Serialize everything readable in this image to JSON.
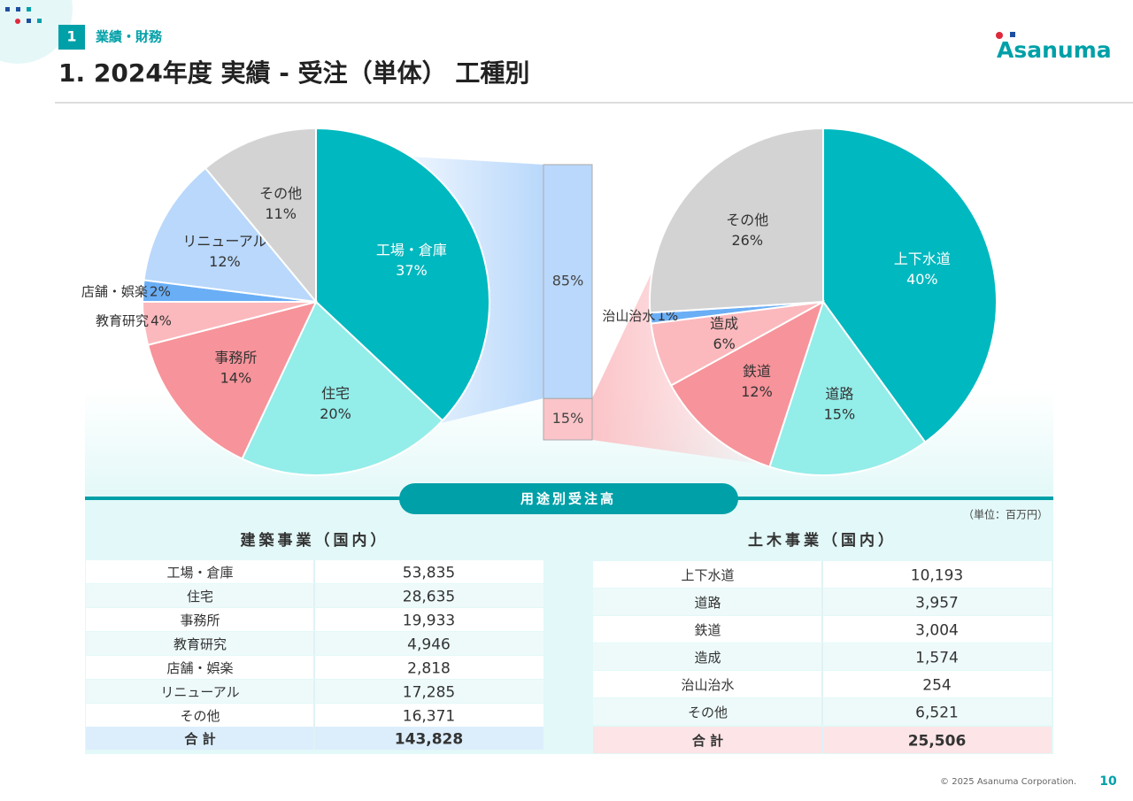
{
  "header": {
    "section_number": "1",
    "section": "業績・財務",
    "title": "1. 2024年度 実績 - 受注（単体） 工種別",
    "logo": "Asanuma"
  },
  "chart_data": [
    {
      "type": "pie",
      "categories": [
        "工場・倉庫",
        "住宅",
        "事務所",
        "教育研究",
        "店舗・娯楽",
        "リニューアル",
        "その他"
      ],
      "values": [
        37,
        20,
        14,
        4,
        2,
        12,
        11
      ],
      "value_labels": [
        "37%",
        "20%",
        "14%",
        "4%",
        "2%",
        "12%",
        "11%"
      ],
      "colors": [
        "#00b8bf",
        "#93ede9",
        "#f7939a",
        "#fbb9bd",
        "#6aaef5",
        "#b9d8fb",
        "#d3d3d3"
      ]
    },
    {
      "type": "stacked_bar",
      "values": [
        85,
        15
      ],
      "value_labels": [
        "85%",
        "15%"
      ],
      "colors": [
        "#b9d8fb",
        "#fbc4c8"
      ],
      "ylim": [
        0,
        100
      ]
    },
    {
      "type": "pie",
      "categories": [
        "上下水道",
        "道路",
        "鉄道",
        "造成",
        "治山治水",
        "その他"
      ],
      "values": [
        40,
        15,
        12,
        6,
        1,
        26
      ],
      "value_labels": [
        "40%",
        "15%",
        "12%",
        "6%",
        "1%",
        "26%"
      ],
      "colors": [
        "#00b8bf",
        "#93ede9",
        "#f7939a",
        "#fbb9bd",
        "#6aaef5",
        "#d3d3d3"
      ]
    }
  ],
  "band": "用途別受注高",
  "unit": "（単位：百万円）",
  "tables": [
    {
      "header": "建築事業（国内）",
      "rows": [
        [
          "工場・倉庫",
          "53,835"
        ],
        [
          "住宅",
          "28,635"
        ],
        [
          "事務所",
          "19,933"
        ],
        [
          "教育研究",
          "4,946"
        ],
        [
          "店舗・娯楽",
          "2,818"
        ],
        [
          "リニューアル",
          "17,285"
        ],
        [
          "その他",
          "16,371"
        ]
      ],
      "total": [
        "合 計",
        "143,828"
      ]
    },
    {
      "header": "土木事業（国内）",
      "rows": [
        [
          "上下水道",
          "10,193"
        ],
        [
          "道路",
          "3,957"
        ],
        [
          "鉄道",
          "3,004"
        ],
        [
          "造成",
          "1,574"
        ],
        [
          "治山治水",
          "254"
        ],
        [
          "その他",
          "6,521"
        ]
      ],
      "total": [
        "合 計",
        "25,506"
      ]
    }
  ],
  "footer": {
    "copyright": "© 2025 Asanuma Corporation.",
    "page": "10"
  }
}
